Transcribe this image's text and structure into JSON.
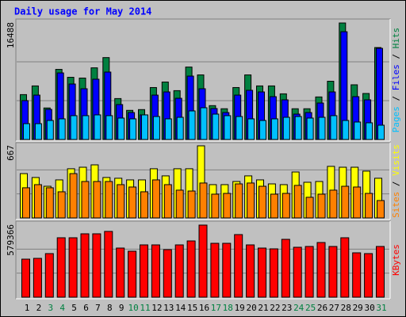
{
  "title": "Daily usage for May 2014",
  "separator": " / ",
  "categories": [
    "1",
    "2",
    "3",
    "4",
    "5",
    "6",
    "7",
    "8",
    "9",
    "10",
    "11",
    "12",
    "13",
    "14",
    "15",
    "16",
    "17",
    "18",
    "19",
    "20",
    "21",
    "22",
    "23",
    "24",
    "25",
    "26",
    "27",
    "28",
    "29",
    "30",
    "31"
  ],
  "category_colors": [
    "#000000",
    "#000000",
    "#008040",
    "#008040",
    "#000000",
    "#000000",
    "#000000",
    "#000000",
    "#000000",
    "#008040",
    "#008040",
    "#000000",
    "#000000",
    "#000000",
    "#000000",
    "#000000",
    "#008040",
    "#008040",
    "#000000",
    "#000000",
    "#000000",
    "#000000",
    "#000000",
    "#008040",
    "#008040",
    "#000000",
    "#000000",
    "#000000",
    "#000000",
    "#000000",
    "#008040"
  ],
  "chart_data": [
    {
      "type": "bar",
      "ylim": [
        0,
        16488
      ],
      "yticks": [
        16488
      ],
      "series": [
        {
          "name": "Hits",
          "color": "#008040",
          "values": [
            6350,
            7580,
            4460,
            9920,
            8800,
            8690,
            10140,
            11590,
            5790,
            4120,
            4230,
            7350,
            8130,
            6910,
            10250,
            9140,
            4790,
            4350,
            7350,
            9140,
            7580,
            7580,
            6460,
            4350,
            4350,
            6020,
            8240,
            16488,
            7740,
            6510,
            13010
          ]
        },
        {
          "name": "Files",
          "color": "#0000ff",
          "values": [
            5500,
            6280,
            4260,
            9420,
            7850,
            7180,
            8530,
            9540,
            4940,
            3810,
            3480,
            6280,
            6730,
            5830,
            8970,
            7180,
            4380,
            3810,
            6280,
            6960,
            6730,
            6060,
            5610,
            3590,
            3810,
            5160,
            6730,
            15250,
            6060,
            5610,
            12900
          ]
        },
        {
          "name": "Pages",
          "color": "#00c0ff",
          "values": [
            2240,
            2240,
            2690,
            2920,
            3370,
            3370,
            3480,
            3370,
            3030,
            2920,
            3480,
            3250,
            2920,
            3140,
            4040,
            4490,
            3590,
            3370,
            3250,
            2920,
            2690,
            2920,
            3140,
            3250,
            3030,
            3140,
            3370,
            2690,
            2470,
            2360,
            2020
          ]
        }
      ]
    },
    {
      "type": "bar",
      "ylim": [
        0,
        667
      ],
      "yticks": [
        667
      ],
      "series": [
        {
          "name": "Visits",
          "color": "#ffff00",
          "values": [
            410,
            374,
            293,
            352,
            455,
            469,
            491,
            374,
            367,
            352,
            352,
            455,
            389,
            455,
            455,
            667,
            308,
            308,
            337,
            389,
            352,
            315,
            308,
            425,
            330,
            337,
            477,
            469,
            469,
            433,
            367
          ]
        },
        {
          "name": "Sites",
          "color": "#ff8000",
          "values": [
            279,
            308,
            279,
            242,
            410,
            337,
            337,
            337,
            308,
            286,
            242,
            352,
            308,
            257,
            249,
            323,
            220,
            227,
            315,
            323,
            293,
            220,
            227,
            301,
            191,
            220,
            257,
            293,
            286,
            227,
            161
          ]
        }
      ]
    },
    {
      "type": "bar",
      "ylim": [
        0,
        579366
      ],
      "yticks": [
        579366
      ],
      "series": [
        {
          "name": "KBytes",
          "color": "#ff0000",
          "values": [
            305600,
            312000,
            350200,
            477500,
            477500,
            509300,
            509300,
            528400,
            394700,
            369300,
            420200,
            420200,
            382000,
            420200,
            452000,
            579366,
            432900,
            432900,
            503000,
            420200,
            394700,
            388400,
            464800,
            401100,
            407500,
            439300,
            407500,
            477500,
            356500,
            350200,
            407500
          ]
        }
      ]
    }
  ]
}
